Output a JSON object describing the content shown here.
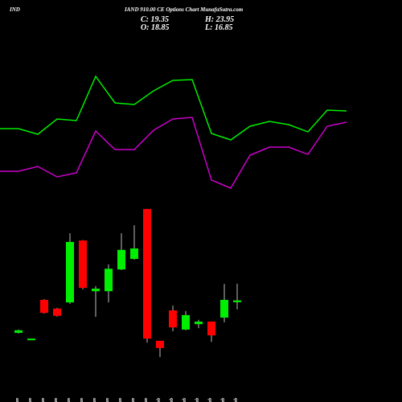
{
  "chart_data": {
    "type": "candlestick",
    "brand": "IND",
    "title": "IAND 910.00 CE Options  Chart MunafaSutra.com",
    "annotations": [
      "C: 19.35",
      "H: 23.95",
      "O: 18.85",
      "L: 16.85"
    ],
    "categories": [
      "13 Jan",
      "14 Jan",
      "15 Jan",
      "20 Jan",
      "22 Jan",
      "23 Jan",
      "27 Jan",
      "28 Jan",
      "29 Jan",
      "30 Jan",
      "31 Jan",
      "01 Feb",
      "03 Feb",
      "04 Feb",
      "05 Feb",
      "06 Feb",
      "07 Feb",
      "10 Feb"
    ],
    "open": [
      10.4,
      8.8,
      19.5,
      17.1,
      18.8,
      35.9,
      21.9,
      21.9,
      27.9,
      30.8,
      44.6,
      8.2,
      16.6,
      11.3,
      12.8,
      13.5,
      14.6,
      18.85
    ],
    "high": [
      11.3,
      8.8,
      19.7,
      17.3,
      37.9,
      36.0,
      23.3,
      29.3,
      37.9,
      40.1,
      44.6,
      8.2,
      17.9,
      16.4,
      14.0,
      13.5,
      23.9,
      23.95
    ],
    "low": [
      10.2,
      8.8,
      15.7,
      14.9,
      18.4,
      22.4,
      14.8,
      18.8,
      27.7,
      30.6,
      7.7,
      3.7,
      10.8,
      11.1,
      11.7,
      7.9,
      13.3,
      16.85
    ],
    "close": [
      11.1,
      8.8,
      15.9,
      15.1,
      35.5,
      22.8,
      22.6,
      28.1,
      33.3,
      33.7,
      8.8,
      6.2,
      11.9,
      15.3,
      13.5,
      9.7,
      19.5,
      19.35
    ],
    "up_color": "#00ee00",
    "down_color": "#ff0000",
    "ylim": [
      -8.7,
      102.3
    ],
    "y2lim": [
      0,
      500
    ],
    "series": [
      {
        "color": "#00ee00",
        "axis": "y2",
        "values": [
          340,
          333,
          352,
          350,
          405,
          372,
          370,
          387,
          400,
          401,
          334,
          326,
          343,
          349,
          345,
          336,
          363,
          362
        ]
      },
      {
        "color": "#cc00cc",
        "axis": "y2",
        "values": [
          287,
          293,
          280,
          285,
          337,
          314,
          314,
          338,
          352,
          354,
          276,
          266,
          307,
          317,
          317,
          308,
          343,
          348
        ]
      }
    ]
  }
}
